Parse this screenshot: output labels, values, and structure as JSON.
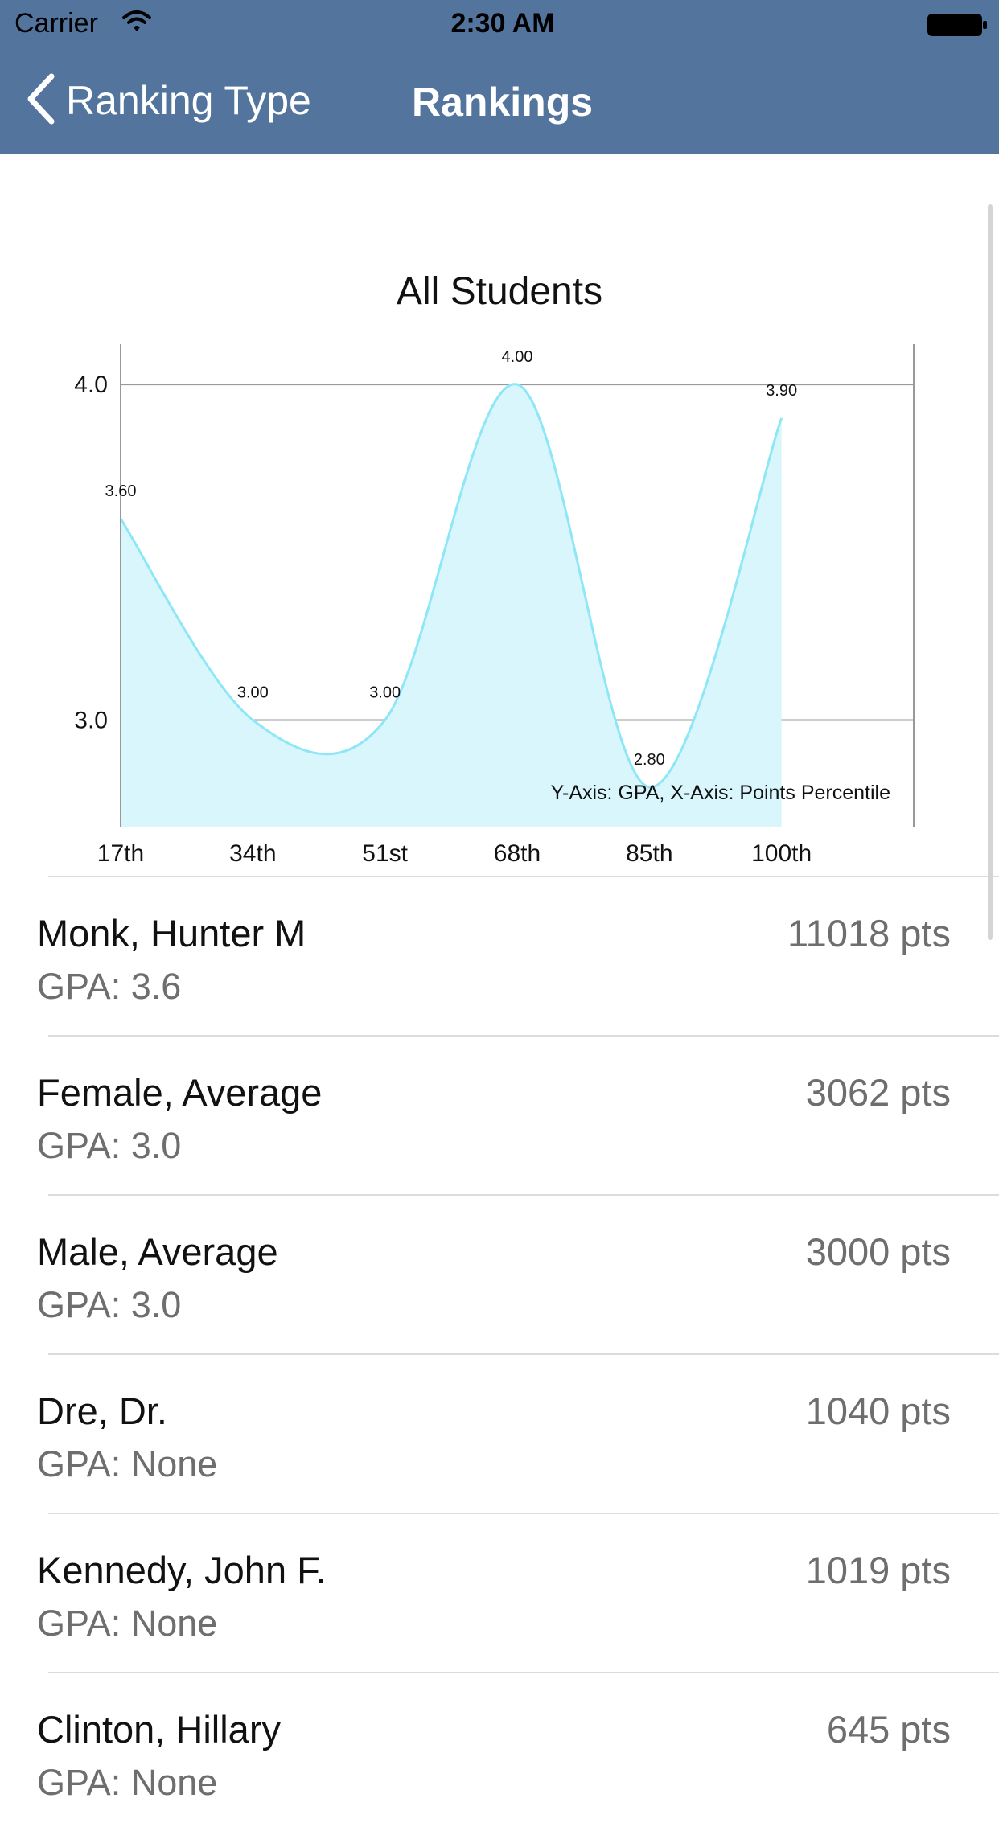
{
  "status_bar": {
    "carrier": "Carrier",
    "time": "2:30 AM"
  },
  "nav": {
    "back_label": "Ranking Type",
    "title": "Rankings"
  },
  "chart_data": {
    "type": "area",
    "title": "All Students",
    "note": "Y-Axis: GPA, X-Axis: Points Percentile",
    "categories": [
      "17th",
      "34th",
      "51st",
      "68th",
      "85th",
      "100th"
    ],
    "series": [
      {
        "values": [
          3.6,
          3.0,
          3.0,
          4.0,
          2.8,
          3.9
        ]
      }
    ],
    "value_labels": [
      "3.60",
      "3.00",
      "3.00",
      "4.00",
      "2.80",
      "3.90"
    ],
    "yticks": [
      3.0,
      4.0
    ],
    "ytick_labels": [
      "3.0",
      "4.0"
    ],
    "ylim": [
      2.68,
      4.12
    ],
    "grid": true,
    "colors": {
      "fill": "#d8f6fc",
      "line": "#8ee7f6"
    }
  },
  "rows": [
    {
      "name": "Monk, Hunter M",
      "gpa": "GPA: 3.6",
      "pts": "11018 pts"
    },
    {
      "name": "Female, Average",
      "gpa": "GPA: 3.0",
      "pts": "3062 pts"
    },
    {
      "name": "Male, Average",
      "gpa": "GPA: 3.0",
      "pts": "3000 pts"
    },
    {
      "name": "Dre, Dr.",
      "gpa": "GPA: None",
      "pts": "1040 pts"
    },
    {
      "name": "Kennedy, John F.",
      "gpa": "GPA: None",
      "pts": "1019 pts"
    },
    {
      "name": "Clinton, Hillary",
      "gpa": "GPA: None",
      "pts": "645 pts"
    }
  ]
}
